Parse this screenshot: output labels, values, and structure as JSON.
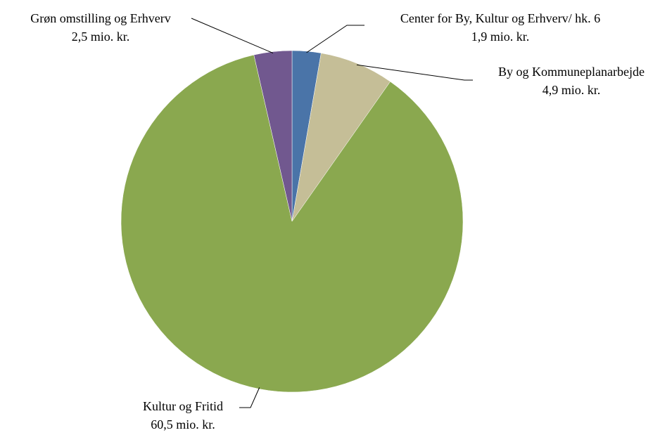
{
  "chart_data": {
    "type": "pie",
    "categories": [
      "Center for By, Kultur og Erhverv/ hk. 6",
      "By og Kommuneplanarbejde",
      "Kultur og Fritid",
      "Grøn omstilling og Erhverv"
    ],
    "values": [
      1.9,
      4.9,
      60.5,
      2.5
    ],
    "value_labels": [
      "1,9 mio. kr.",
      "4,9 mio. kr.",
      "60,5 mio. kr.",
      "2,5 mio. kr."
    ],
    "colors": [
      "#4a74a8",
      "#c5be97",
      "#8aa84f",
      "#71588f"
    ]
  }
}
